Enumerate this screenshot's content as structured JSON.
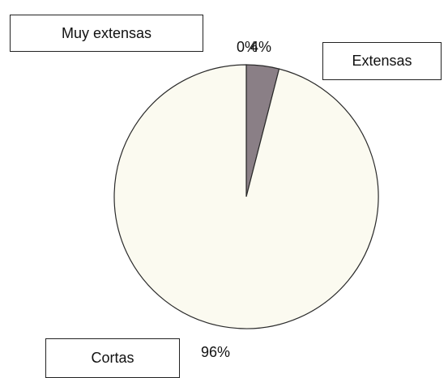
{
  "chart_data": {
    "type": "pie",
    "categories": [
      "Muy extensas",
      "Extensas",
      "Cortas"
    ],
    "values": [
      0,
      4,
      96
    ],
    "value_labels": [
      "0%",
      "4%",
      "96%"
    ],
    "colors": [
      "#888088",
      "#8a7f86",
      "#fbfaf0"
    ],
    "legend": "separate boxes around the pie",
    "title": ""
  }
}
